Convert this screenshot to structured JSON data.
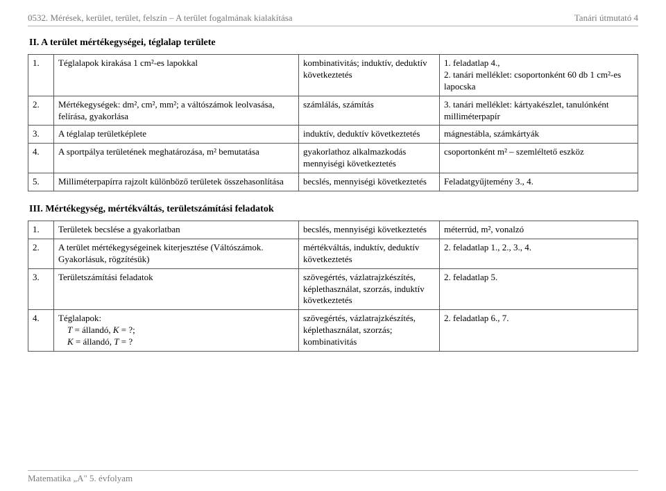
{
  "header": {
    "left": "0532. Mérések, kerület, terület, felszín – A terület fogalmának kialakítása",
    "right": "Tanári útmutató   4"
  },
  "footer": "Matematika „A\" 5. évfolyam",
  "section2": {
    "title": "II. A terület mértékegységei, téglalap területe",
    "rows": [
      {
        "n": "1.",
        "b": "Téglalapok kirakása 1 cm²-es lapokkal",
        "c": "kombinativitás; induktív, deduktív következtetés",
        "d": "1. feladatlap 4.,\n2. tanári melléklet: csoportonként 60 db 1 cm²-es lapocska"
      },
      {
        "n": "2.",
        "b": "Mértékegységek: dm², cm², mm²; a váltószámok leolvasása, felírása, gyakorlása",
        "c": "számlálás, számítás",
        "d": "3. tanári melléklet: kártyakészlet, tanulónként milliméterpapír"
      },
      {
        "n": "3.",
        "b": "A téglalap területképlete",
        "c": "induktív, deduktív következtetés",
        "d": "mágnestábla, számkártyák"
      },
      {
        "n": "4.",
        "b": "A sportpálya területének meghatározása, m² bemutatása",
        "c": "gyakorlathoz alkalmazkodás mennyiségi következtetés",
        "d": "csoportonként m² – szemléltető eszköz"
      },
      {
        "n": "5.",
        "b": "Milliméterpapírra rajzolt különböző területek összehasonlítása",
        "c": "becslés, mennyiségi következtetés",
        "d": "Feladatgyűjtemény 3., 4."
      }
    ]
  },
  "section3": {
    "title": "III. Mértékegység, mértékváltás, területszámítási feladatok",
    "rows": [
      {
        "n": "1.",
        "b": "Területek becslése a gyakorlatban",
        "c": "becslés, mennyiségi következtetés",
        "d": "méterrúd, m², vonalzó"
      },
      {
        "n": "2.",
        "b": "A terület mértékegységeinek kiterjesztése (Váltószámok. Gyakorlásuk, rögzítésük)",
        "c": "mértékváltás, induktív, deduktív következtetés",
        "d": "2. feladatlap 1., 2., 3., 4."
      },
      {
        "n": "3.",
        "b": "Területszámítási feladatok",
        "c": "szövegértés, vázlatrajzkészítés, képlethasználat, szorzás, induktív következtetés",
        "d": "2. feladatlap 5."
      },
      {
        "n": "4.",
        "b_html": "Téglalapok:<br>&nbsp;&nbsp;&nbsp;&nbsp;<span class='ital'>T</span> = állandó, <span class='ital'>K</span> = ?;<br>&nbsp;&nbsp;&nbsp;&nbsp;<span class='ital'>K</span> = állandó, <span class='ital'>T</span> = ?",
        "c": "szövegértés, vázlatrajzkészítés, képlethasználat, szorzás; kombinativitás",
        "d": "2. feladatlap 6., 7."
      }
    ]
  }
}
